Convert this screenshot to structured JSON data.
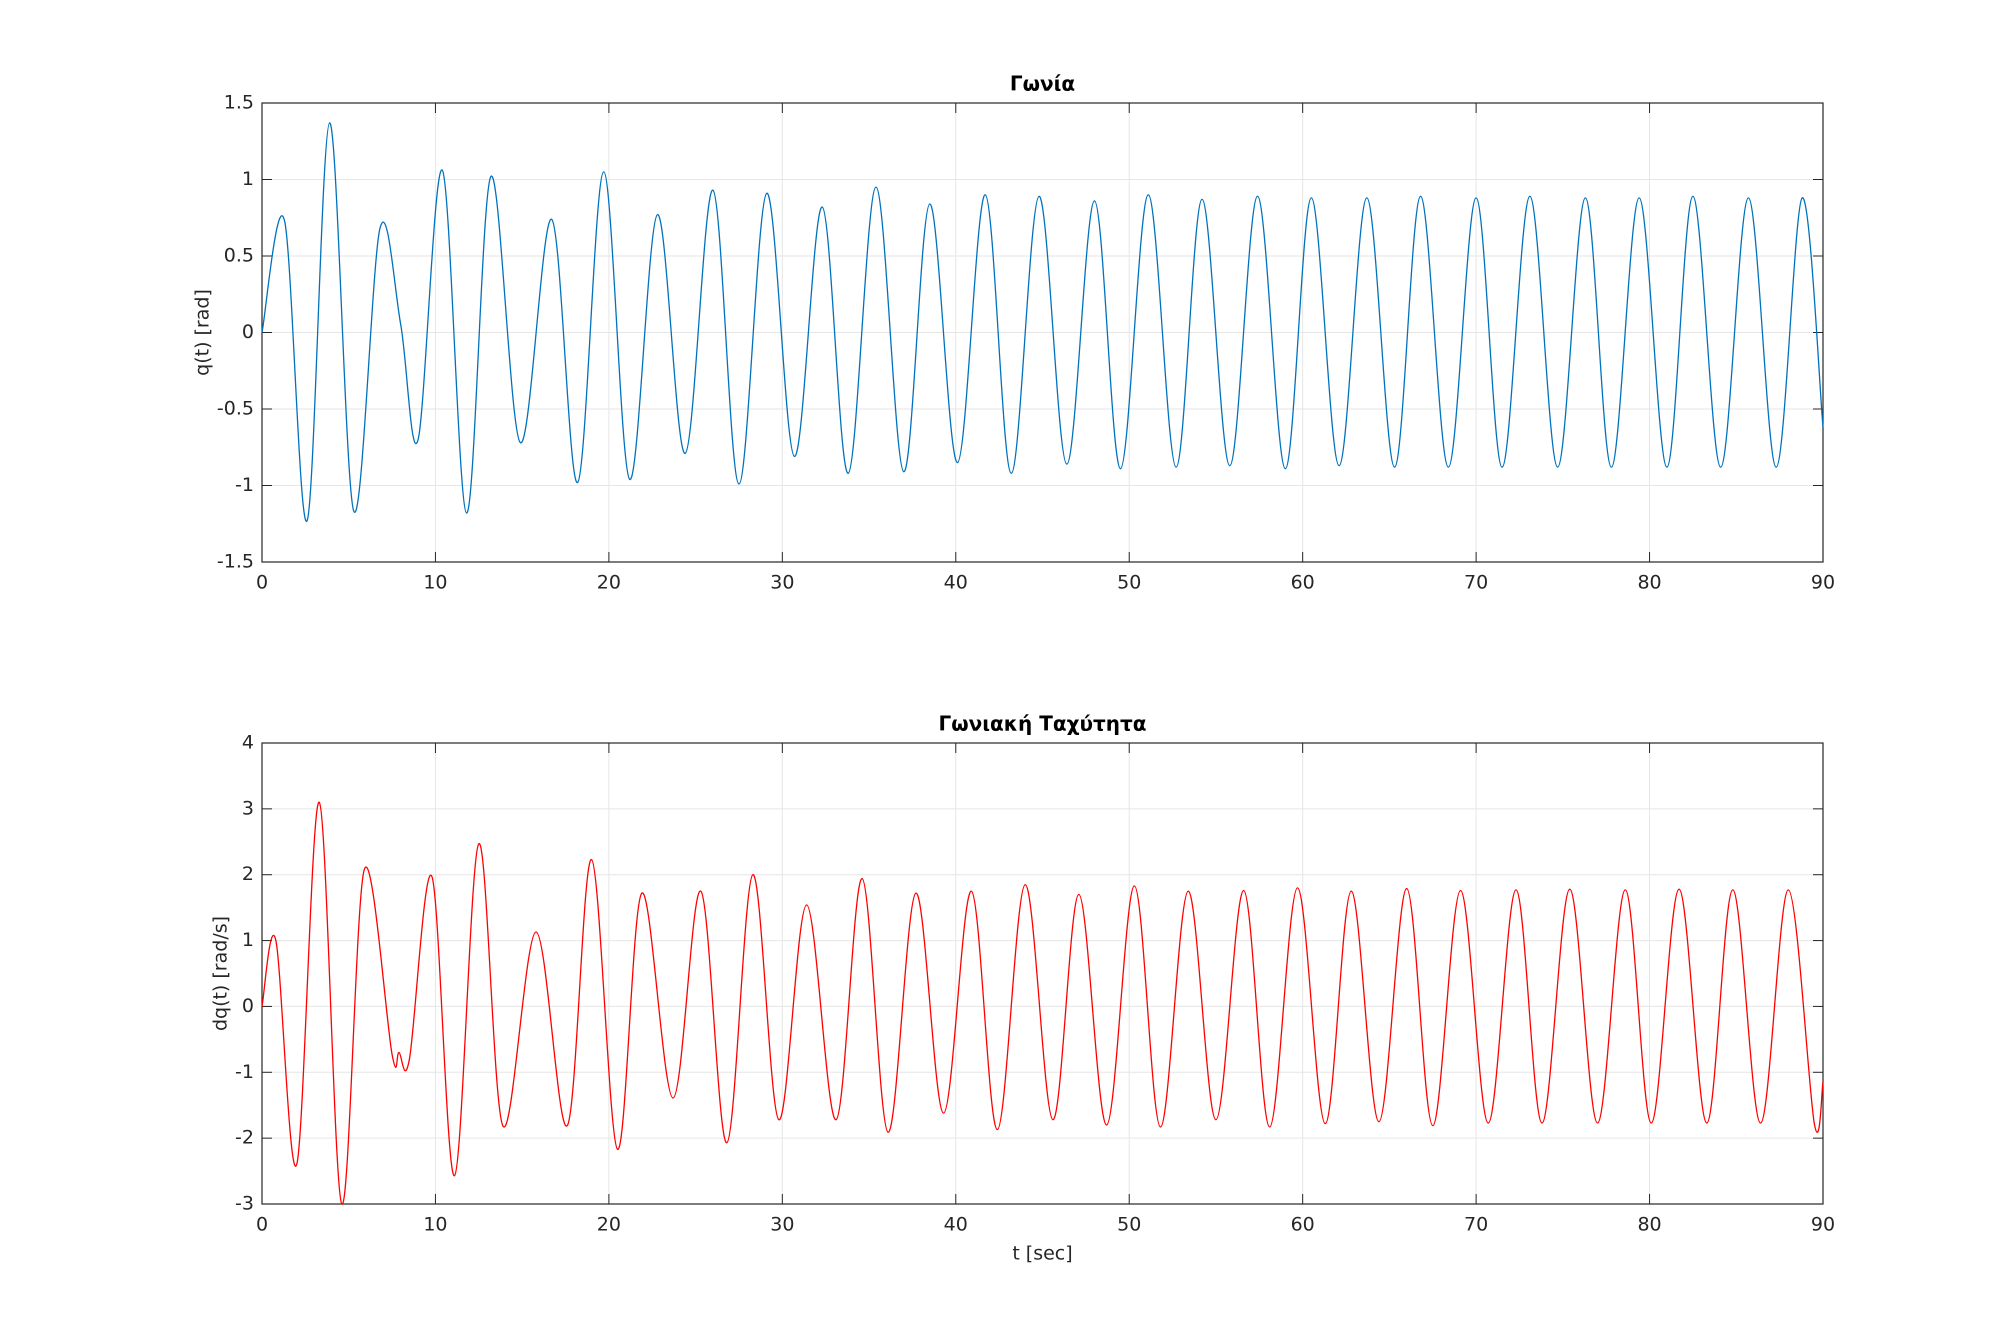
{
  "chart_data": [
    {
      "type": "line",
      "title": "Γωνία",
      "ylabel": "q(t) [rad]",
      "xlim": [
        0,
        90
      ],
      "xticks": [
        0,
        10,
        20,
        30,
        40,
        50,
        60,
        70,
        80,
        90
      ],
      "ylim": [
        -1.5,
        1.5
      ],
      "yticks": [
        -1.5,
        -1,
        -0.5,
        0,
        0.5,
        1,
        1.5
      ],
      "grid": true,
      "series": [
        {
          "color": "#0072bd",
          "x": [
            0,
            1.3,
            2.6,
            3.9,
            5.3,
            6.8,
            8.0,
            9.0,
            10.4,
            11.8,
            13.2,
            14.9,
            16.7,
            18.2,
            19.7,
            21.2,
            22.8,
            24.4,
            26.0,
            27.5,
            29.1,
            30.7,
            32.3,
            33.8,
            35.4,
            37.0,
            38.5,
            40.1,
            41.7,
            43.2,
            44.8,
            46.4,
            48.0,
            49.5,
            51.1,
            52.7,
            54.2,
            55.8,
            57.4,
            59.0,
            60.5,
            62.1,
            63.7,
            65.3,
            66.8,
            68.4,
            70.0,
            71.5,
            73.1,
            74.7,
            76.3,
            77.8,
            79.4,
            81.0,
            82.5,
            84.1,
            85.7,
            87.3,
            88.8,
            90
          ],
          "values": [
            0,
            0.73,
            -1.23,
            1.37,
            -1.17,
            0.68,
            0.05,
            -0.7,
            1.06,
            -1.18,
            1.02,
            -0.72,
            0.74,
            -0.98,
            1.05,
            -0.96,
            0.77,
            -0.79,
            0.93,
            -0.99,
            0.91,
            -0.81,
            0.82,
            -0.92,
            0.95,
            -0.91,
            0.84,
            -0.85,
            0.9,
            -0.92,
            0.89,
            -0.86,
            0.86,
            -0.89,
            0.9,
            -0.88,
            0.87,
            -0.87,
            0.89,
            -0.89,
            0.88,
            -0.87,
            0.88,
            -0.88,
            0.89,
            -0.88,
            0.88,
            -0.88,
            0.89,
            -0.88,
            0.88,
            -0.88,
            0.88,
            -0.88,
            0.89,
            -0.88,
            0.88,
            -0.88,
            0.88,
            -0.62
          ]
        }
      ]
    },
    {
      "type": "line",
      "title": "Γωνιακή Ταχύτητα",
      "ylabel": "dq(t) [rad/s]",
      "xlabel": "t [sec]",
      "xlim": [
        0,
        90
      ],
      "xticks": [
        0,
        10,
        20,
        30,
        40,
        50,
        60,
        70,
        80,
        90
      ],
      "ylim": [
        -3,
        4
      ],
      "yticks": [
        -3,
        -2,
        -1,
        0,
        1,
        2,
        3,
        4
      ],
      "grid": true,
      "series": [
        {
          "color": "#ff0000",
          "x": [
            0,
            0.8,
            2.0,
            3.3,
            4.6,
            5.9,
            7.5,
            7.9,
            8.5,
            9.8,
            11.1,
            12.5,
            13.9,
            15.8,
            17.6,
            19.0,
            20.5,
            21.9,
            23.7,
            25.3,
            26.8,
            28.3,
            29.8,
            31.4,
            33.1,
            34.6,
            36.1,
            37.7,
            39.3,
            40.9,
            42.4,
            44.0,
            45.6,
            47.1,
            48.7,
            50.3,
            51.8,
            53.4,
            55.0,
            56.6,
            58.1,
            59.7,
            61.3,
            62.8,
            64.4,
            66.0,
            67.5,
            69.1,
            70.7,
            72.3,
            73.8,
            75.4,
            77.0,
            78.6,
            80.1,
            81.7,
            83.3,
            84.8,
            86.4,
            88.0,
            89.5,
            90
          ],
          "values": [
            0,
            1.0,
            -2.4,
            3.1,
            -3.0,
            2.08,
            -0.73,
            -0.7,
            -0.8,
            1.97,
            -2.57,
            2.47,
            -1.82,
            1.13,
            -1.81,
            2.23,
            -2.17,
            1.72,
            -1.39,
            1.75,
            -2.07,
            2.0,
            -1.72,
            1.54,
            -1.72,
            1.94,
            -1.91,
            1.72,
            -1.62,
            1.75,
            -1.87,
            1.85,
            -1.72,
            1.7,
            -1.8,
            1.83,
            -1.83,
            1.75,
            -1.72,
            1.76,
            -1.83,
            1.8,
            -1.78,
            1.75,
            -1.75,
            1.79,
            -1.81,
            1.76,
            -1.77,
            1.77,
            -1.77,
            1.78,
            -1.77,
            1.77,
            -1.77,
            1.78,
            -1.77,
            1.77,
            -1.77,
            1.77,
            -1.78,
            -1.15
          ]
        }
      ]
    }
  ]
}
